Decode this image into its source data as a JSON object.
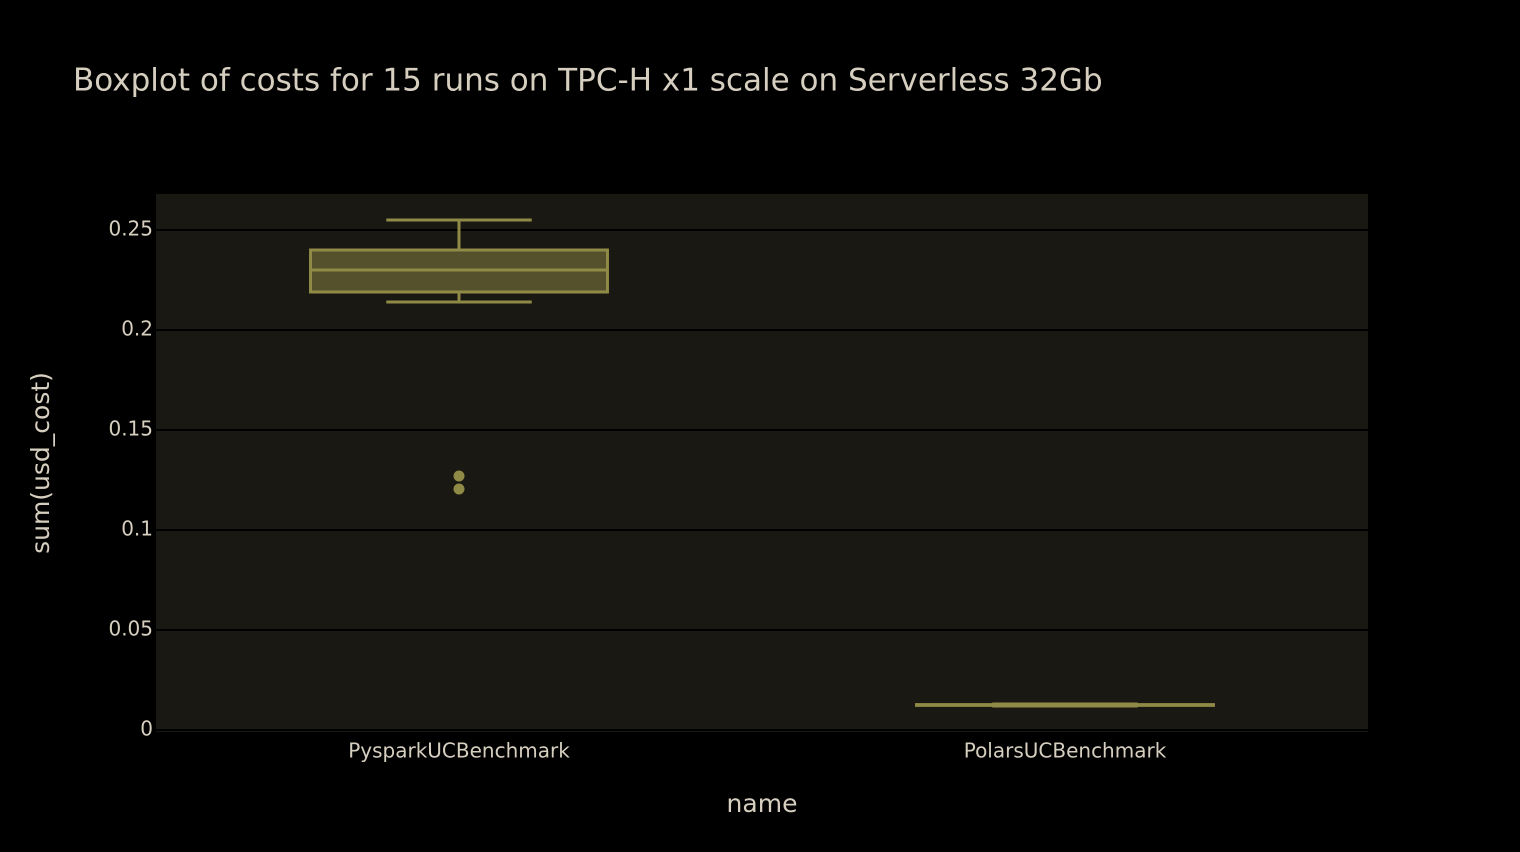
{
  "chart_data": {
    "type": "box",
    "title": "Boxplot of costs for 15 runs on TPC-H x1 scale on Serverless 32Gb",
    "x_label": "name",
    "y_label": "sum(usd_cost)",
    "categories": [
      "PysparkUCBenchmark",
      "PolarsUCBenchmark"
    ],
    "color": "#8f8a45",
    "boxes": [
      {
        "min": 0.214,
        "q1": 0.219,
        "median": 0.23,
        "q3": 0.24,
        "max": 0.255,
        "outliers": [
          0.127,
          0.1205
        ]
      },
      {
        "min": 0.012,
        "q1": 0.0123,
        "median": 0.0125,
        "q3": 0.0127,
        "max": 0.013,
        "outliers": []
      }
    ],
    "ylim": [
      -0.001,
      0.268
    ],
    "yticks": [
      0,
      0.05,
      0.1,
      0.15,
      0.2,
      0.25
    ],
    "grid": true
  }
}
